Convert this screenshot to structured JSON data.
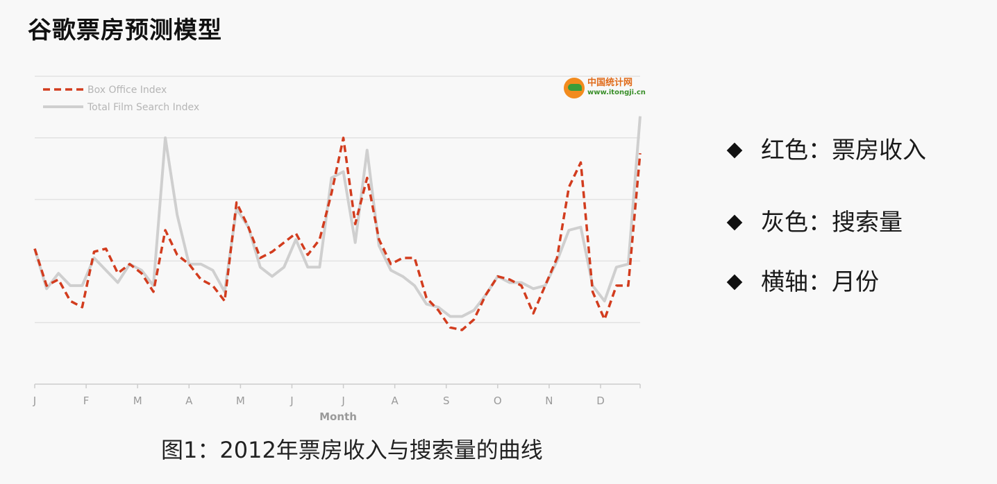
{
  "slide": {
    "title": "谷歌票房预测模型",
    "caption": "图1：2012年票房收入与搜索量的曲线",
    "bullets": [
      {
        "text": "红色：票房收入"
      },
      {
        "text": "灰色：搜索量"
      },
      {
        "text": "横轴：月份"
      }
    ]
  },
  "logo": {
    "name": "中国统计网",
    "url": "www.itongji.cn"
  },
  "colors": {
    "box_office": "#d23c1e",
    "search": "#cfcfcf",
    "grid": "#e2e2e2"
  },
  "chart_data": {
    "type": "line",
    "title": "",
    "xlabel": "Month",
    "ylabel": "",
    "x_ticks": [
      "J",
      "F",
      "M",
      "A",
      "M",
      "J",
      "J",
      "A",
      "S",
      "O",
      "N",
      "D"
    ],
    "x_range": [
      0,
      51
    ],
    "ylim": [
      0,
      5
    ],
    "y_gridlines": [
      1,
      2,
      3,
      4,
      5
    ],
    "legend_placement": "top-left",
    "series": [
      {
        "name": "Box Office Index",
        "style": "dashed",
        "values": [
          2.2,
          1.6,
          1.7,
          1.35,
          1.25,
          2.15,
          2.2,
          1.8,
          1.95,
          1.8,
          1.5,
          2.5,
          2.1,
          1.95,
          1.7,
          1.6,
          1.35,
          2.95,
          2.55,
          2.05,
          2.15,
          2.3,
          2.45,
          2.1,
          2.35,
          3.1,
          4.0,
          2.6,
          3.35,
          2.35,
          1.95,
          2.05,
          2.05,
          1.4,
          1.2,
          0.92,
          0.88,
          1.05,
          1.45,
          1.75,
          1.7,
          1.6,
          1.15,
          1.6,
          2.05,
          3.2,
          3.6,
          1.5,
          1.05,
          1.6,
          1.6,
          3.75
        ]
      },
      {
        "name": "Total Film Search Index",
        "style": "solid",
        "values": [
          2.2,
          1.55,
          1.8,
          1.6,
          1.6,
          2.05,
          1.85,
          1.65,
          1.95,
          1.85,
          1.6,
          4.0,
          2.75,
          1.95,
          1.95,
          1.85,
          1.5,
          2.85,
          2.55,
          1.9,
          1.75,
          1.9,
          2.35,
          1.9,
          1.9,
          3.35,
          3.45,
          2.3,
          3.8,
          2.25,
          1.85,
          1.75,
          1.6,
          1.3,
          1.25,
          1.1,
          1.1,
          1.2,
          1.45,
          1.75,
          1.65,
          1.65,
          1.55,
          1.6,
          2.0,
          2.5,
          2.55,
          1.6,
          1.35,
          1.9,
          1.95,
          4.35
        ]
      }
    ]
  }
}
